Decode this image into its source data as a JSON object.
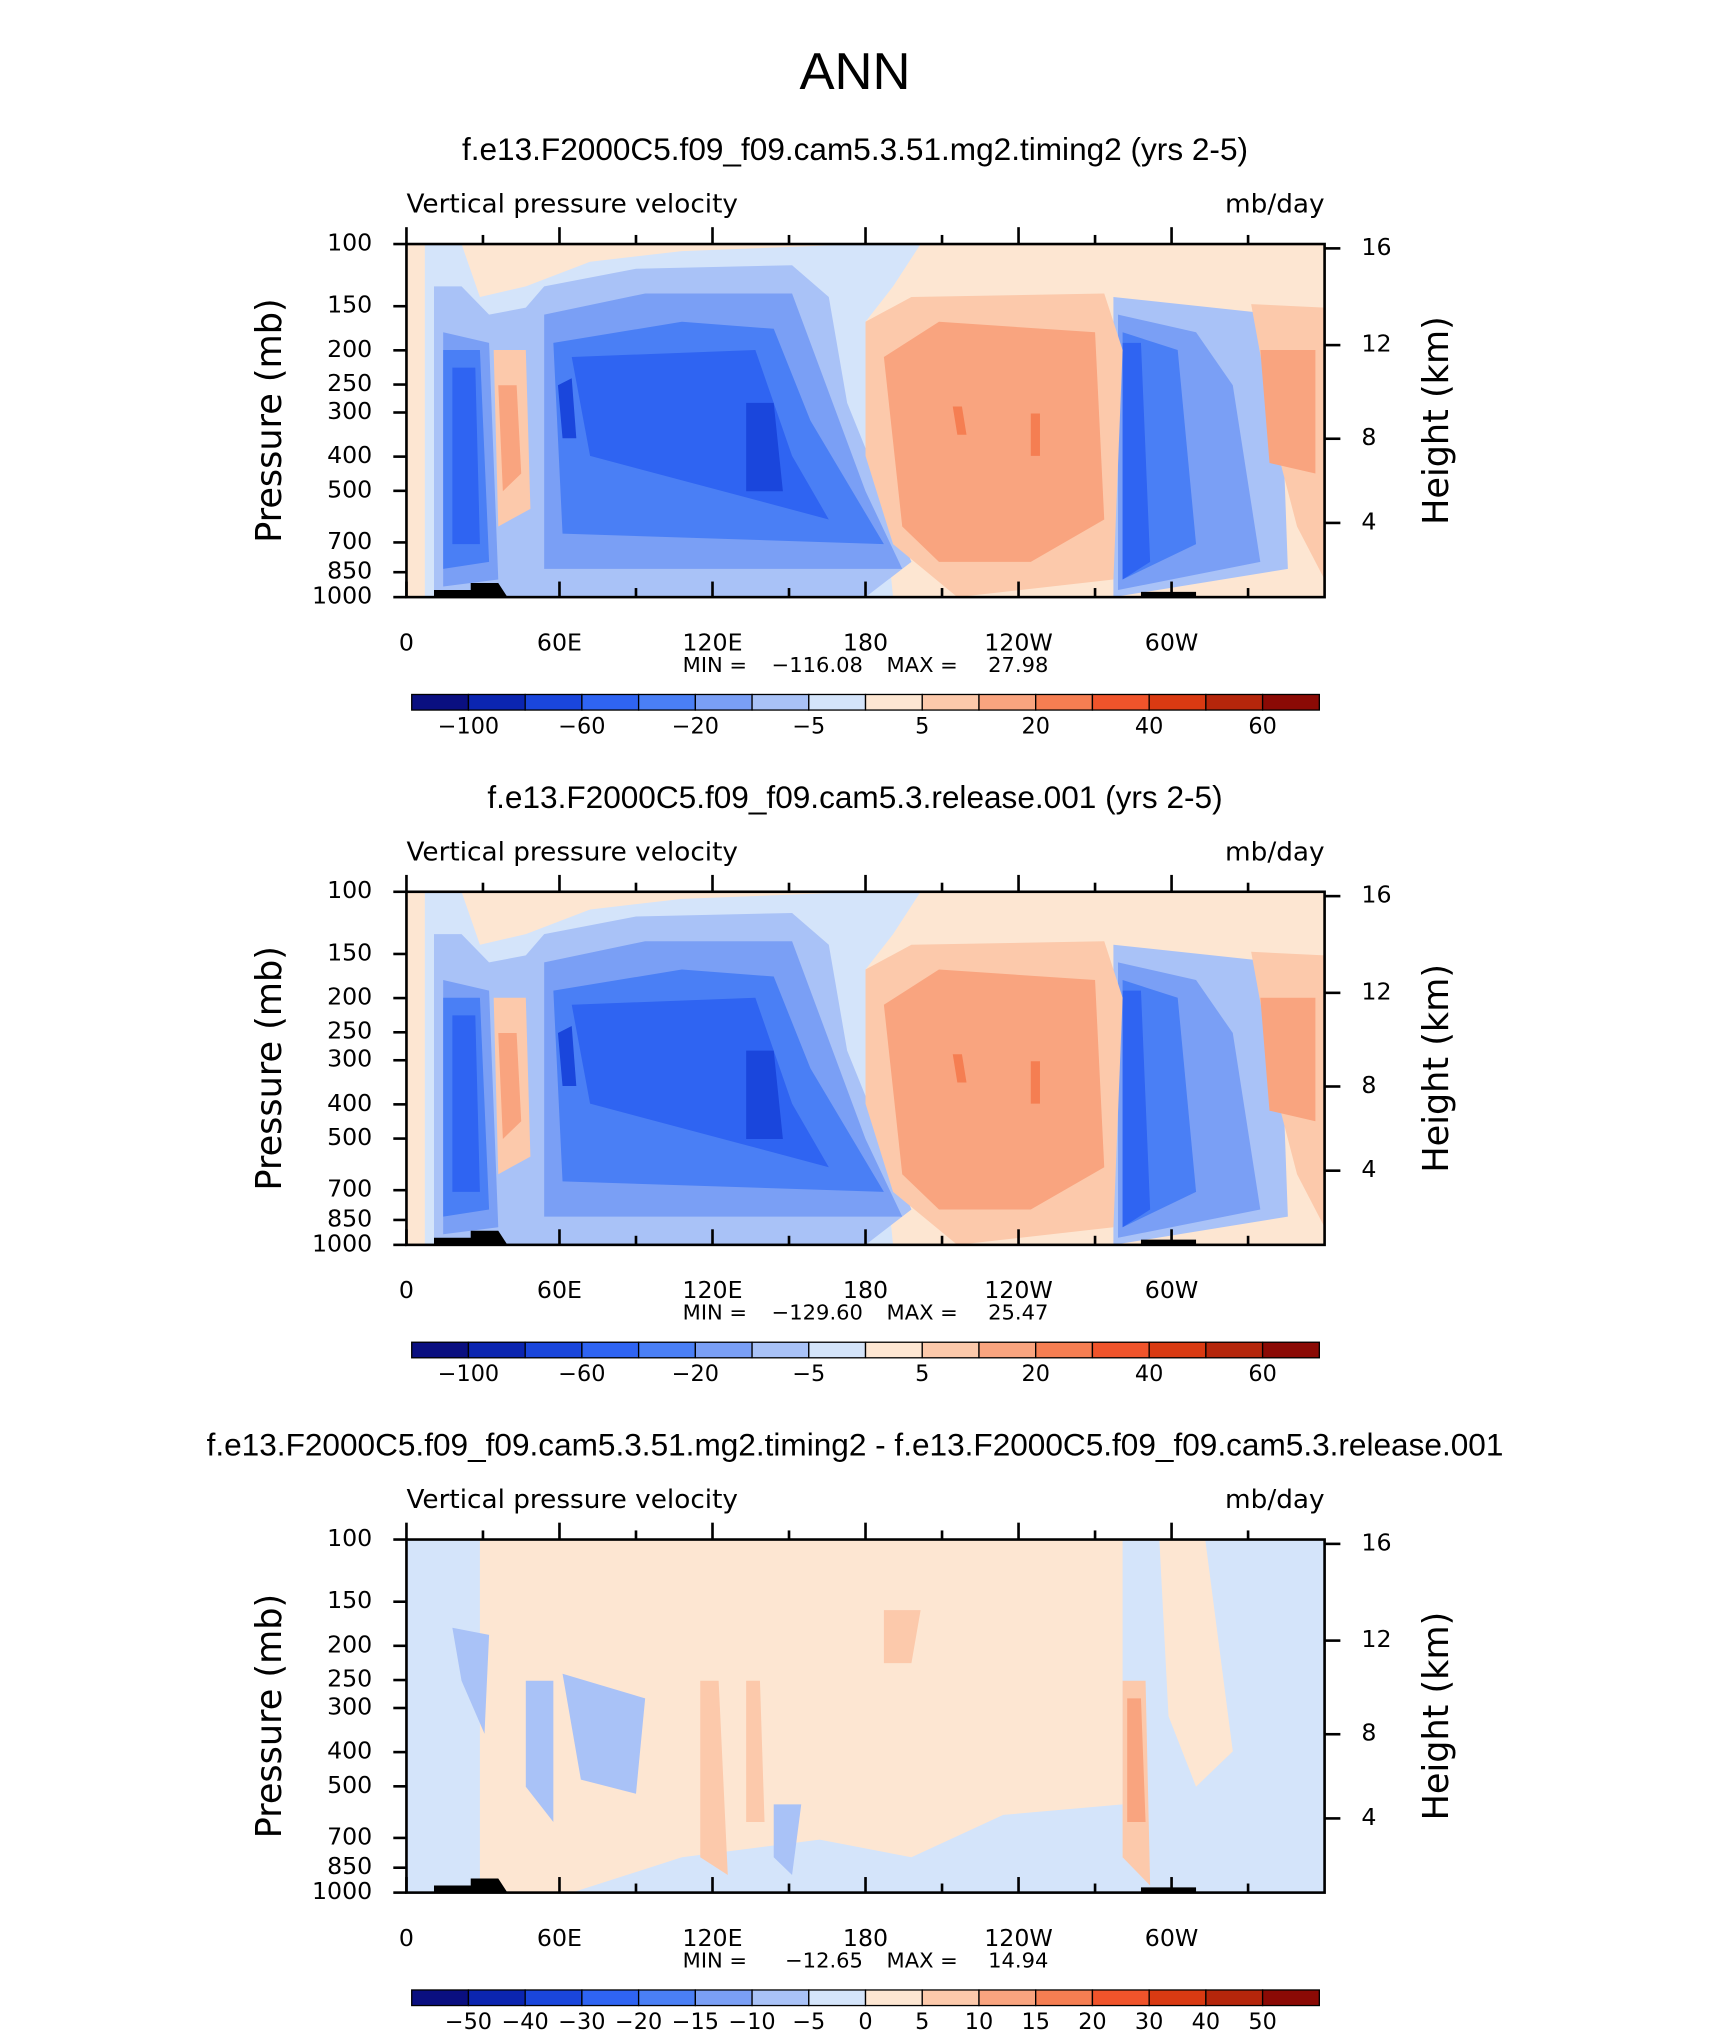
{
  "title": "ANN",
  "chart_data": [
    {
      "type": "contour",
      "title": "f.e13.F2000C5.f09_f09.cam5.3.51.mg2.timing2 (yrs 2-5)",
      "left_string": "Vertical pressure velocity",
      "right_string": "mb/day",
      "y_label": "Pressure (mb)",
      "y2_label": "Height (km)",
      "log_y": true,
      "ylim": [
        1000,
        100
      ],
      "yticks": [
        100,
        150,
        200,
        250,
        300,
        400,
        500,
        700,
        850,
        1000
      ],
      "y2ticks": [
        4,
        8,
        12,
        16
      ],
      "xlim": [
        0,
        360
      ],
      "xticks": [
        0,
        {
          "value": 60,
          "label": "60E"
        },
        {
          "value": 120,
          "label": "120E"
        },
        180,
        {
          "value": 240,
          "label": "120W"
        },
        {
          "value": 300,
          "label": "60W"
        }
      ],
      "xminorticks": [
        30,
        90,
        150,
        210,
        270,
        330
      ],
      "min_label": "MIN =",
      "min": {
        "value": -116.08,
        "label": "−116.08"
      },
      "max_label": "MAX =",
      "max": 27.98,
      "colorbar": {
        "colors": [
          "#0a0f80",
          "#0b25b0",
          "#1a46dc",
          "#2f64f2",
          "#4a7ff5",
          "#7a9ff5",
          "#a9c2f7",
          "#d4e4fa",
          "#fde6d2",
          "#fcc9ab",
          "#f9a47f",
          "#f57e52",
          "#f0542b",
          "#d93a12",
          "#b5260b",
          "#8b0a05"
        ],
        "labels": [
          {
            "value": -100,
            "label": "−100"
          },
          {
            "value": -60,
            "label": "−60"
          },
          {
            "value": -20,
            "label": "−20"
          },
          {
            "value": -5,
            "label": "−5"
          },
          5,
          20,
          40,
          60
        ]
      }
    },
    {
      "type": "contour",
      "title": "f.e13.F2000C5.f09_f09.cam5.3.release.001 (yrs 2-5)",
      "left_string": "Vertical pressure velocity",
      "right_string": "mb/day",
      "y_label": "Pressure (mb)",
      "y2_label": "Height (km)",
      "log_y": true,
      "ylim": [
        1000,
        100
      ],
      "yticks": [
        100,
        150,
        200,
        250,
        300,
        400,
        500,
        700,
        850,
        1000
      ],
      "y2ticks": [
        4,
        8,
        12,
        16
      ],
      "xlim": [
        0,
        360
      ],
      "xticks": [
        0,
        {
          "value": 60,
          "label": "60E"
        },
        {
          "value": 120,
          "label": "120E"
        },
        180,
        {
          "value": 240,
          "label": "120W"
        },
        {
          "value": 300,
          "label": "60W"
        }
      ],
      "xminorticks": [
        30,
        90,
        150,
        210,
        270,
        330
      ],
      "min_label": "MIN =",
      "min": {
        "value": -129.6,
        "label": "−129.60"
      },
      "max_label": "MAX =",
      "max": 25.47,
      "colorbar": {
        "colors": [
          "#0a0f80",
          "#0b25b0",
          "#1a46dc",
          "#2f64f2",
          "#4a7ff5",
          "#7a9ff5",
          "#a9c2f7",
          "#d4e4fa",
          "#fde6d2",
          "#fcc9ab",
          "#f9a47f",
          "#f57e52",
          "#f0542b",
          "#d93a12",
          "#b5260b",
          "#8b0a05"
        ],
        "labels": [
          {
            "value": -100,
            "label": "−100"
          },
          {
            "value": -60,
            "label": "−60"
          },
          {
            "value": -20,
            "label": "−20"
          },
          {
            "value": -5,
            "label": "−5"
          },
          5,
          20,
          40,
          60
        ]
      }
    },
    {
      "type": "contour",
      "title": "f.e13.F2000C5.f09_f09.cam5.3.51.mg2.timing2 - f.e13.F2000C5.f09_f09.cam5.3.release.001",
      "left_string": "Vertical pressure velocity",
      "right_string": "mb/day",
      "y_label": "Pressure (mb)",
      "y2_label": "Height (km)",
      "log_y": true,
      "ylim": [
        1000,
        100
      ],
      "yticks": [
        100,
        150,
        200,
        250,
        300,
        400,
        500,
        700,
        850,
        1000
      ],
      "y2ticks": [
        4,
        8,
        12,
        16
      ],
      "xlim": [
        0,
        360
      ],
      "xticks": [
        0,
        {
          "value": 60,
          "label": "60E"
        },
        {
          "value": 120,
          "label": "120E"
        },
        180,
        {
          "value": 240,
          "label": "120W"
        },
        {
          "value": 300,
          "label": "60W"
        }
      ],
      "xminorticks": [
        30,
        90,
        150,
        210,
        270,
        330
      ],
      "min_label": "MIN =",
      "min": {
        "value": -12.65,
        "label": "−12.65"
      },
      "max_label": "MAX =",
      "max": 14.94,
      "colorbar": {
        "colors": [
          "#0a0f80",
          "#0b25b0",
          "#1a46dc",
          "#2f64f2",
          "#4a7ff5",
          "#7a9ff5",
          "#a9c2f7",
          "#d4e4fa",
          "#fde6d2",
          "#fcc9ab",
          "#f9a47f",
          "#f57e52",
          "#f0542b",
          "#d93a12",
          "#b5260b",
          "#8b0a05"
        ],
        "labels": [
          {
            "value": -50,
            "label": "−50"
          },
          {
            "value": -40,
            "label": "−40"
          },
          {
            "value": -30,
            "label": "−30"
          },
          {
            "value": -20,
            "label": "−20"
          },
          {
            "value": -15,
            "label": "−15"
          },
          {
            "value": -10,
            "label": "−10"
          },
          {
            "value": -5,
            "label": "−5"
          },
          0,
          5,
          10,
          15,
          20,
          30,
          40,
          50
        ]
      }
    }
  ]
}
